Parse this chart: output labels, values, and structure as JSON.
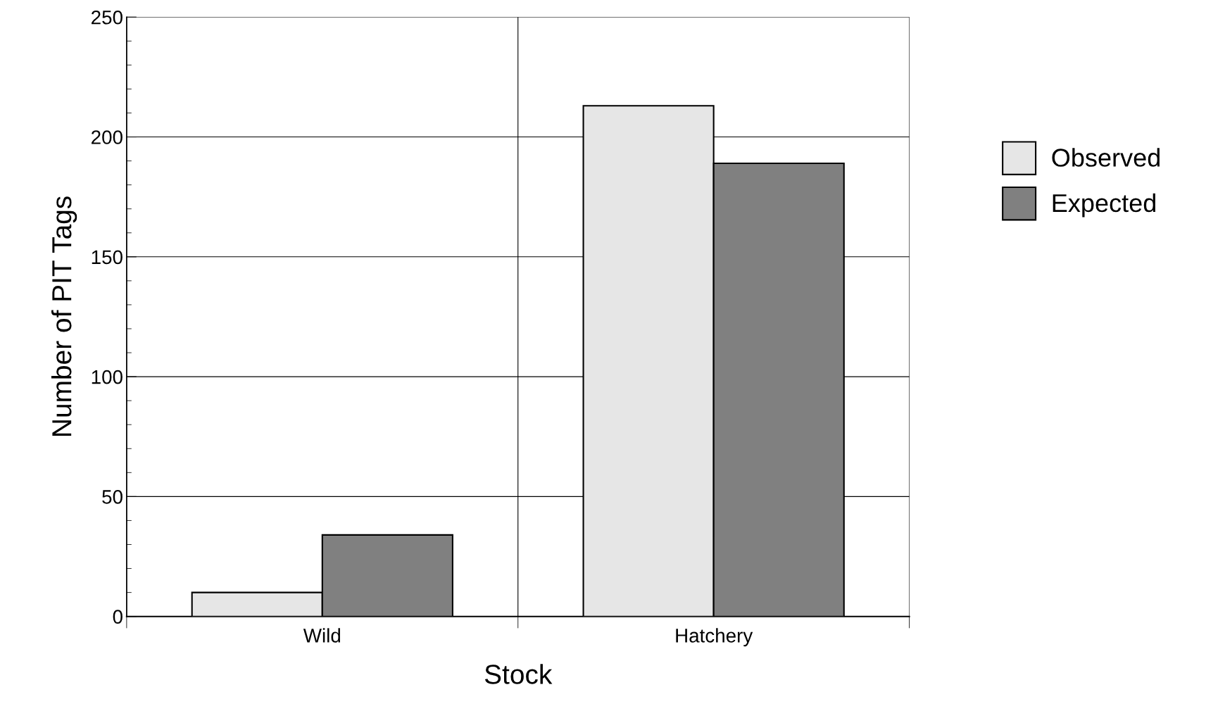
{
  "chart_data": {
    "type": "bar",
    "xlabel": "Stock",
    "ylabel": "Number of PIT Tags",
    "categories": [
      "Wild",
      "Hatchery"
    ],
    "series": [
      {
        "name": "Observed",
        "color": "#e6e6e6",
        "values": [
          10,
          213
        ]
      },
      {
        "name": "Expected",
        "color": "#808080",
        "values": [
          34,
          189
        ]
      }
    ],
    "ylim": [
      0,
      250
    ],
    "yticks": [
      0,
      50,
      100,
      150,
      200,
      250
    ],
    "grid": true,
    "legend": "right"
  }
}
